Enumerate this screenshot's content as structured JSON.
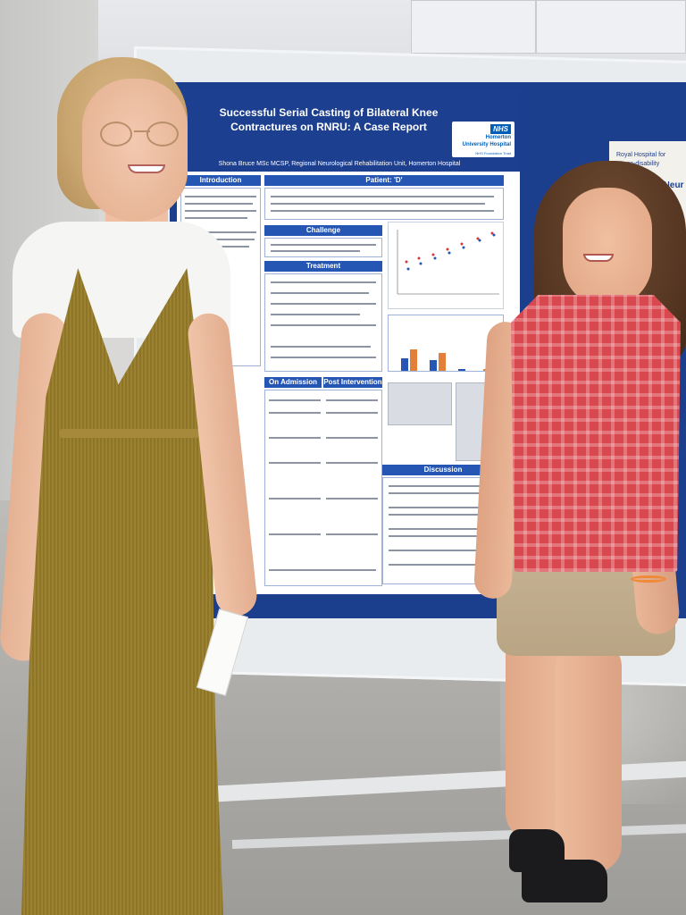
{
  "scene": {
    "description_colors": {
      "board_blue": "#1b3f8c",
      "poster_header": "#1d3f8f",
      "section_bar": "#2656b3",
      "nhs_blue": "#005eb8"
    }
  },
  "poster": {
    "title": "Successful Serial Casting of Bilateral Knee Contractures on RNRU: A Case Report",
    "author": "Shona Bruce MSc MCSP, Regional Neurological Rehabilitation Unit, Homerton Hospital",
    "logo": {
      "mark": "NHS",
      "line1": "Homerton",
      "line2": "University Hospital",
      "line3": "NHS Foundation Trust"
    },
    "sections": {
      "introduction": "Introduction",
      "patient": "Patient: 'D'",
      "challenge": "Challenge",
      "treatment": "Treatment",
      "on_admission": "On Admission",
      "post_intervention": "Post Intervention",
      "discussion": "Discussion"
    }
  },
  "other_poster": {
    "line1": "Royal Hospital for",
    "line2": "Neuro-disability",
    "line3": "ng in Neur"
  }
}
